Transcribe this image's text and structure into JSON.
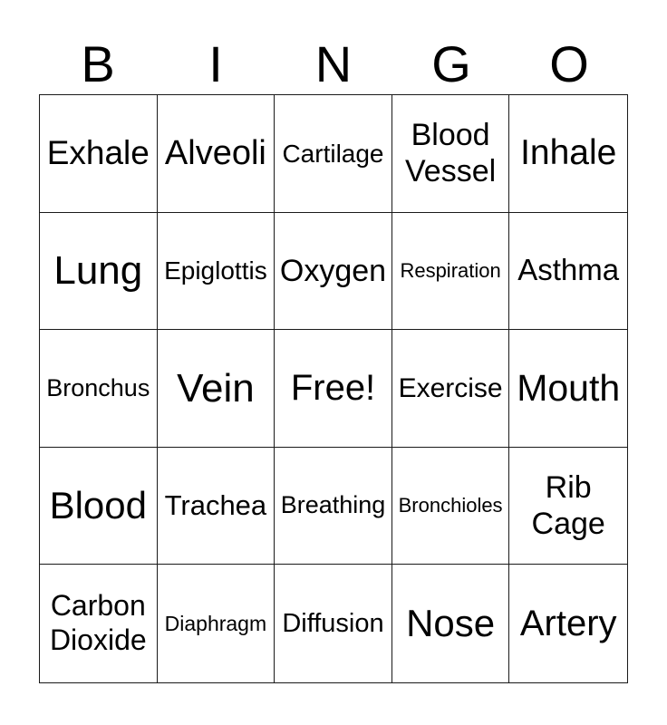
{
  "header": {
    "letters": [
      "B",
      "I",
      "N",
      "G",
      "O"
    ]
  },
  "grid": {
    "rows": [
      [
        "Exhale",
        "Alveoli",
        "Cartilage",
        "Blood Vessel",
        "Inhale"
      ],
      [
        "Lung",
        "Epiglottis",
        "Oxygen",
        "Respiration",
        "Asthma"
      ],
      [
        "Bronchus",
        "Vein",
        "Free!",
        "Exercise",
        "Mouth"
      ],
      [
        "Blood",
        "Trachea",
        "Breathing",
        "Bronchioles",
        "Rib Cage"
      ],
      [
        "Carbon Dioxide",
        "Diaphragm",
        "Diffusion",
        "Nose",
        "Artery"
      ]
    ],
    "free_space": {
      "row": 2,
      "col": 2,
      "label": "Free!"
    }
  },
  "colors": {
    "background": "#ffffff",
    "grid_line": "#1a1a1a",
    "text": "#000000"
  }
}
